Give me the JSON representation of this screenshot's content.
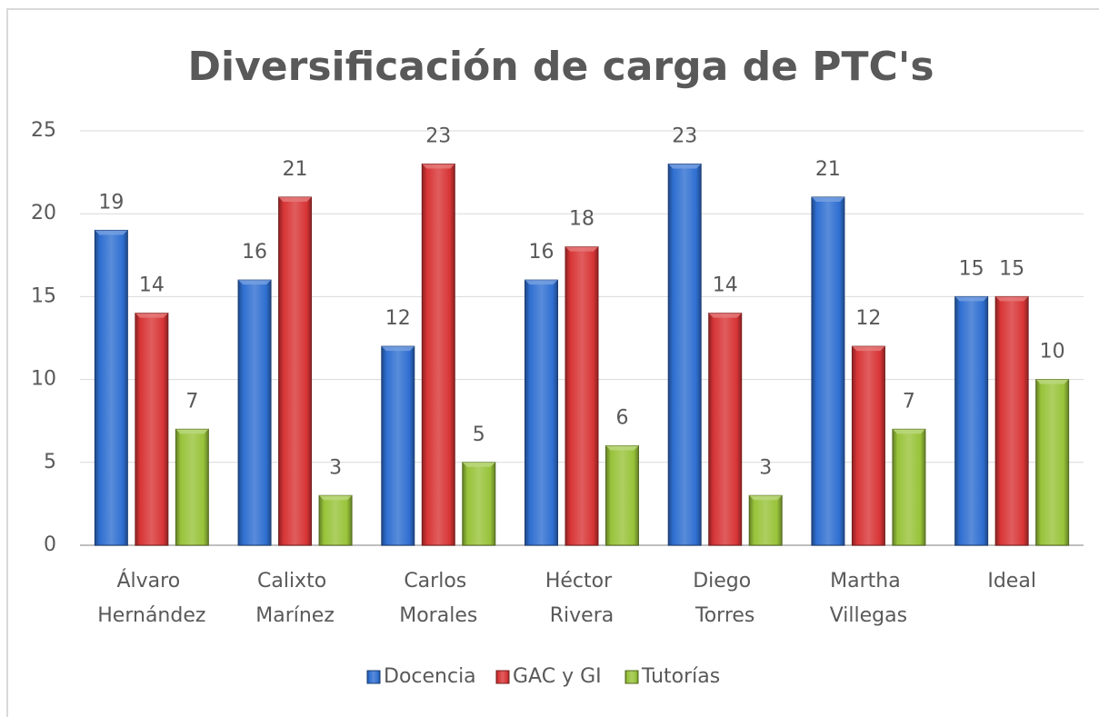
{
  "chart_data": {
    "type": "bar",
    "title": "Diversificación de carga de PTC's",
    "categories": [
      "Álvaro Hernández",
      "Calixto Marínez",
      "Carlos Morales",
      "Héctor Rivera",
      "Diego Torres",
      "Martha Villegas",
      "Ideal"
    ],
    "series": [
      {
        "name": "Docencia",
        "color": "#2f6fd1",
        "values": [
          19,
          16,
          12,
          16,
          23,
          21,
          15
        ]
      },
      {
        "name": "GAC y GI",
        "color": "#d83536",
        "values": [
          14,
          21,
          23,
          18,
          14,
          12,
          15
        ]
      },
      {
        "name": "Tutorías",
        "color": "#98c33a",
        "values": [
          7,
          3,
          5,
          6,
          3,
          7,
          10
        ]
      }
    ],
    "ylim": [
      0,
      25
    ],
    "yticks": [
      0,
      5,
      10,
      15,
      20,
      25
    ],
    "grid": true,
    "legend": "bottom"
  }
}
